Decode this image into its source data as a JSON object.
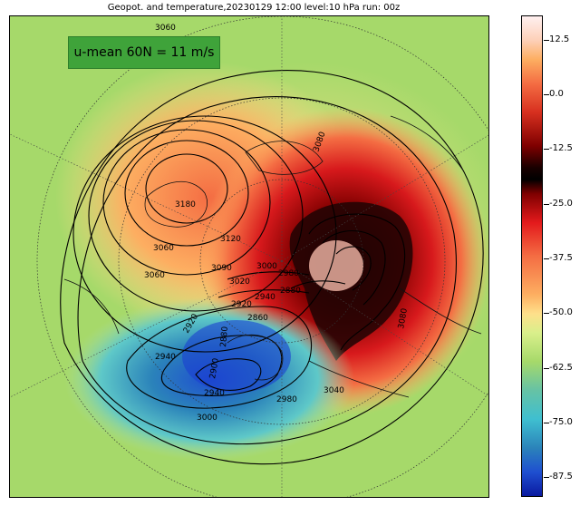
{
  "title": "Geopot. and temperature,20230129 12:00 level:10 hPa run: 00z",
  "annotation": "u-mean 60N = 11 m/s",
  "colorbar": {
    "ticks": [
      "12.5",
      "0.0",
      "-12.5",
      "-25.0",
      "-37.5",
      "-50.0",
      "-62.5",
      "-75.0",
      "-87.5"
    ],
    "range": [
      -92,
      18
    ]
  },
  "contour_labels": [
    "3060",
    "3080",
    "3180",
    "3060",
    "3120",
    "3090",
    "3020",
    "3000",
    "2980",
    "2940",
    "2880",
    "2860",
    "2920",
    "2880",
    "2900",
    "2940",
    "2980",
    "3000",
    "3040",
    "3080",
    "3060",
    "2940",
    "2920"
  ],
  "colors": {
    "background_field": "#a6d96a",
    "warm": "#f46d43",
    "hot": "#b2182b",
    "vortex_core": "#3a0a0a",
    "cold": "#2b83ba",
    "badge": "#3fa33a"
  }
}
